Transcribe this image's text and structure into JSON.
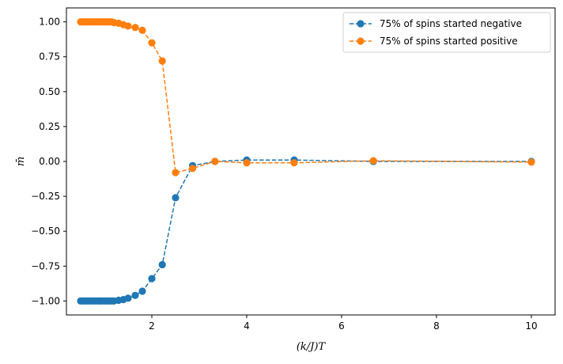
{
  "chart_data": {
    "type": "line",
    "title": "",
    "xlabel": "(k/J)T",
    "ylabel": "m̄",
    "xlim": [
      0.2,
      10.5
    ],
    "ylim": [
      -1.1,
      1.1
    ],
    "xticks": [
      2,
      4,
      6,
      8,
      10
    ],
    "yticks": [
      -1.0,
      -0.75,
      -0.5,
      -0.25,
      0.0,
      0.25,
      0.5,
      0.75,
      1.0
    ],
    "xtick_labels": [
      "2",
      "4",
      "6",
      "8",
      "10"
    ],
    "ytick_labels": [
      "−1.00",
      "−0.75",
      "−0.50",
      "−0.25",
      "0.00",
      "0.25",
      "0.50",
      "0.75",
      "1.00"
    ],
    "grid": false,
    "legend_position": "top-right",
    "series": [
      {
        "name": "75% of spins started negative",
        "color": "#1f77b4",
        "line_style": "dashed",
        "marker": "circle",
        "x": [
          0.5,
          0.55,
          0.6,
          0.65,
          0.7,
          0.75,
          0.8,
          0.85,
          0.9,
          0.95,
          1.0,
          1.05,
          1.1,
          1.15,
          1.2,
          1.3,
          1.4,
          1.5,
          1.65,
          1.8,
          2.0,
          2.22,
          2.5,
          2.86,
          3.33,
          4.0,
          5.0,
          6.67,
          10.0
        ],
        "y": [
          -1.0,
          -1.0,
          -1.0,
          -1.0,
          -1.0,
          -1.0,
          -1.0,
          -1.0,
          -1.0,
          -1.0,
          -1.0,
          -1.0,
          -1.0,
          -1.0,
          -1.0,
          -0.995,
          -0.99,
          -0.98,
          -0.96,
          -0.93,
          -0.84,
          -0.74,
          -0.26,
          -0.03,
          0.0,
          0.01,
          0.01,
          0.0,
          0.0
        ]
      },
      {
        "name": "75% of spins started positive",
        "color": "#ff7f0e",
        "line_style": "dashed",
        "marker": "circle",
        "x": [
          0.5,
          0.55,
          0.6,
          0.65,
          0.7,
          0.75,
          0.8,
          0.85,
          0.9,
          0.95,
          1.0,
          1.05,
          1.1,
          1.15,
          1.2,
          1.3,
          1.4,
          1.5,
          1.65,
          1.8,
          2.0,
          2.22,
          2.5,
          2.86,
          3.33,
          4.0,
          5.0,
          6.67,
          10.0
        ],
        "y": [
          1.0,
          1.0,
          1.0,
          1.0,
          1.0,
          1.0,
          1.0,
          1.0,
          1.0,
          1.0,
          1.0,
          1.0,
          1.0,
          1.0,
          0.995,
          0.99,
          0.98,
          0.97,
          0.96,
          0.94,
          0.85,
          0.72,
          -0.08,
          -0.05,
          0.0,
          -0.01,
          -0.01,
          0.005,
          -0.005
        ]
      }
    ]
  }
}
